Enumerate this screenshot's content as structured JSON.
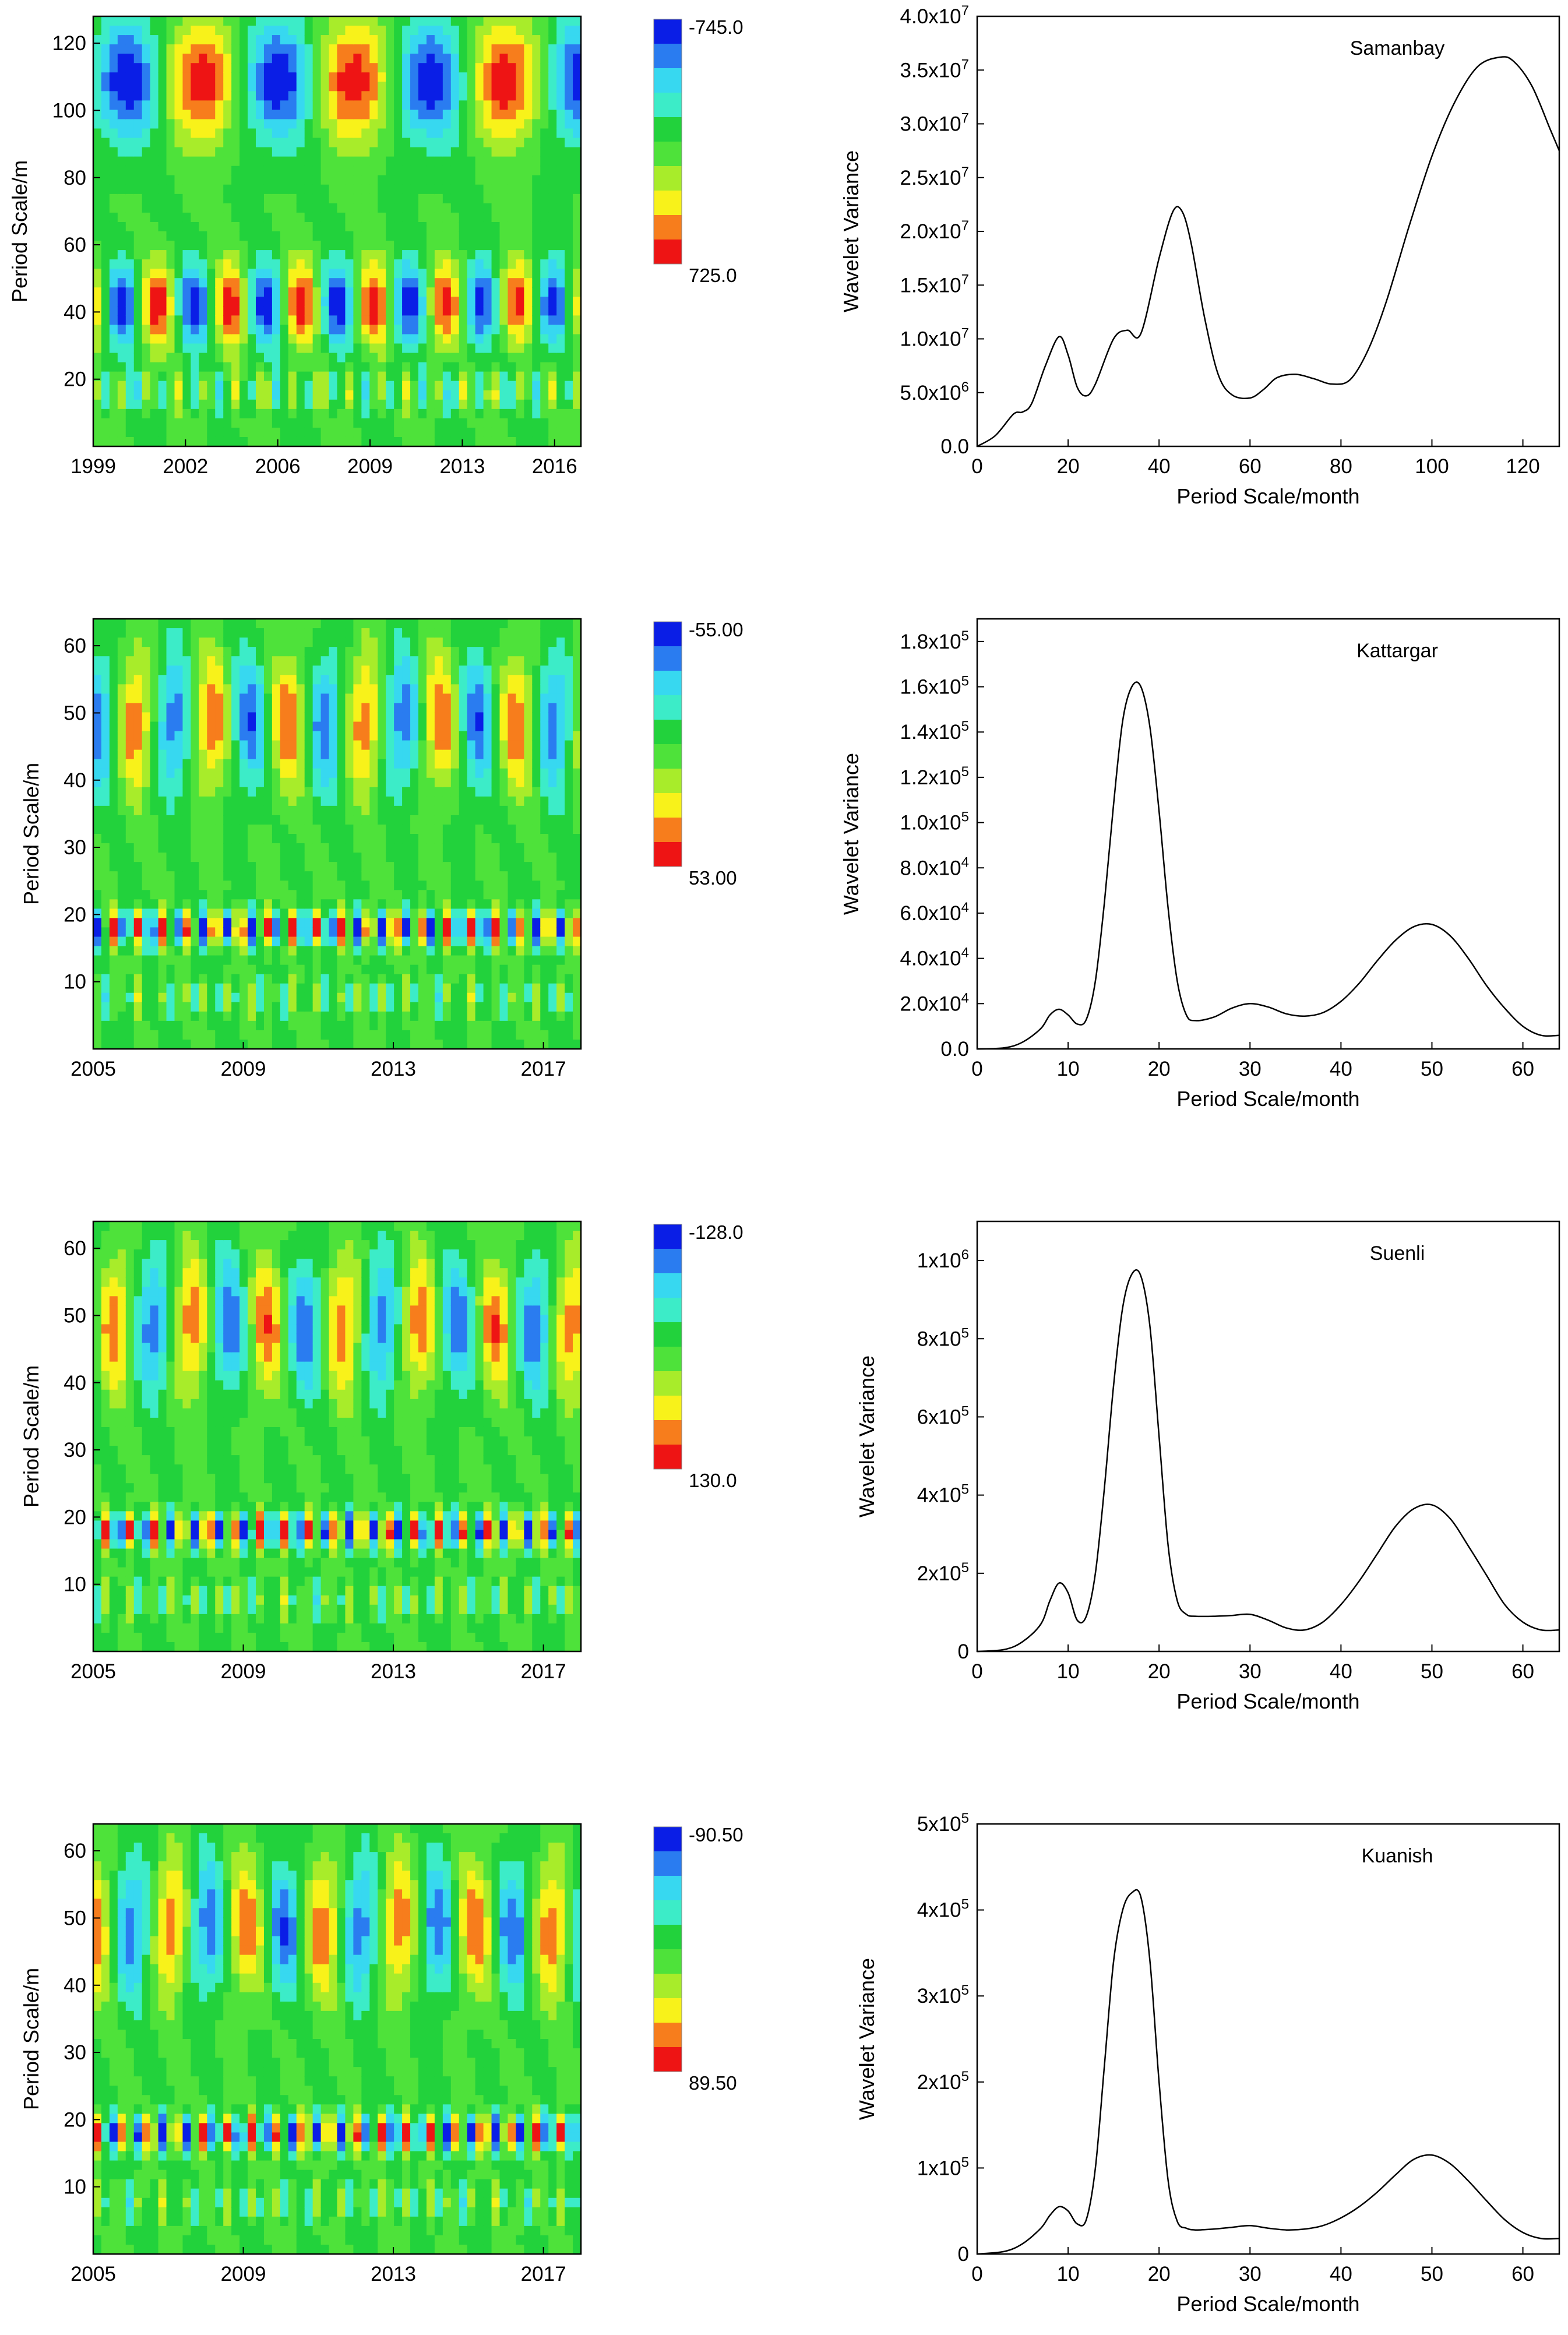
{
  "colors": {
    "scale": [
      "#0a1ee6",
      "#2a7cf0",
      "#37d8f0",
      "#3cecc8",
      "#22d23c",
      "#4ee23a",
      "#a8ec2a",
      "#f8f21a",
      "#f77d1c",
      "#ee1414"
    ],
    "contour_line": "#000000",
    "curve": "#000000"
  },
  "chart_data": [
    {
      "type": "heatmap",
      "site": "Samanbay",
      "ylabel": "Period Scale/m",
      "xlabel": "",
      "x_tick_labels": [
        "1999",
        "2002",
        "2006",
        "2009",
        "2013",
        "2016"
      ],
      "x_tick_years": [
        1999,
        2002.5,
        2006,
        2009.5,
        2013,
        2016.5
      ],
      "xlim": [
        1999,
        2017.5
      ],
      "y_ticks": [
        "20",
        "40",
        "60",
        "80",
        "100",
        "120"
      ],
      "ylim": [
        0,
        128
      ],
      "colorbar_min": "-745.0",
      "colorbar_max": "725.0",
      "spectrum": {
        "type": "line",
        "title": "Samanbay",
        "xlabel": "Period Scale/month",
        "ylabel": "Wavelet Variance",
        "xlim": [
          0,
          128
        ],
        "x_ticks": [
          "0",
          "20",
          "40",
          "60",
          "80",
          "100",
          "120"
        ],
        "ylim": [
          0,
          40000000
        ],
        "y_tick_labels": [
          [
            "0.0",
            ""
          ],
          [
            "5.0x10",
            "6"
          ],
          [
            "1.0x10",
            "7"
          ],
          [
            "1.5x10",
            "7"
          ],
          [
            "2.0x10",
            "7"
          ],
          [
            "2.5x10",
            "7"
          ],
          [
            "3.0x10",
            "7"
          ],
          [
            "3.5x10",
            "7"
          ],
          [
            "4.0x10",
            "7"
          ]
        ],
        "y_tick_values": [
          0,
          5000000,
          10000000,
          15000000,
          20000000,
          25000000,
          30000000,
          35000000,
          40000000
        ],
        "x": [
          0,
          4,
          8,
          10,
          12,
          15,
          18,
          20,
          22,
          24,
          26,
          30,
          33,
          36,
          40,
          43,
          45,
          47,
          50,
          53,
          56,
          60,
          63,
          66,
          70,
          74,
          78,
          82,
          86,
          90,
          95,
          100,
          105,
          110,
          115,
          118,
          122,
          126,
          128
        ],
        "y": [
          0,
          1000000,
          3000000,
          3200000,
          4000000,
          7500000,
          10200000,
          8500000,
          5500000,
          4700000,
          5800000,
          10000000,
          10800000,
          10500000,
          17500000,
          21800000,
          21900000,
          19000000,
          12000000,
          6700000,
          4800000,
          4500000,
          5300000,
          6400000,
          6700000,
          6300000,
          5800000,
          6200000,
          9000000,
          13500000,
          20500000,
          27000000,
          32000000,
          35300000,
          36200000,
          35800000,
          33500000,
          29500000,
          27500000
        ]
      }
    },
    {
      "type": "heatmap",
      "site": "Kattargar",
      "ylabel": "Period Scale/m",
      "xlabel": "",
      "x_tick_labels": [
        "2005",
        "2009",
        "2013",
        "2017"
      ],
      "x_tick_years": [
        2005,
        2009,
        2013,
        2017
      ],
      "xlim": [
        2005,
        2018
      ],
      "y_ticks": [
        "10",
        "20",
        "30",
        "40",
        "50",
        "60"
      ],
      "ylim": [
        0,
        64
      ],
      "colorbar_min": "-55.00",
      "colorbar_max": "53.00",
      "spectrum": {
        "type": "line",
        "title": "Kattargar",
        "xlabel": "Period Scale/month",
        "ylabel": "Wavelet Variance",
        "xlim": [
          0,
          64
        ],
        "x_ticks": [
          "0",
          "10",
          "20",
          "30",
          "40",
          "50",
          "60"
        ],
        "ylim": [
          0,
          190000
        ],
        "y_tick_labels": [
          [
            "0.0",
            ""
          ],
          [
            "2.0x10",
            "4"
          ],
          [
            "4.0x10",
            "4"
          ],
          [
            "6.0x10",
            "4"
          ],
          [
            "8.0x10",
            "4"
          ],
          [
            "1.0x10",
            "5"
          ],
          [
            "1.2x10",
            "5"
          ],
          [
            "1.4x10",
            "5"
          ],
          [
            "1.6x10",
            "5"
          ],
          [
            "1.8x10",
            "5"
          ]
        ],
        "y_tick_values": [
          0,
          20000,
          40000,
          60000,
          80000,
          100000,
          120000,
          140000,
          160000,
          180000
        ],
        "x": [
          0,
          3,
          5,
          7,
          8,
          9,
          10,
          11,
          12,
          13,
          14,
          15,
          16,
          17,
          18,
          19,
          20,
          21,
          22,
          23,
          24,
          26,
          28,
          30,
          32,
          34,
          36,
          38,
          40,
          42,
          44,
          46,
          48,
          50,
          52,
          54,
          56,
          58,
          60,
          62,
          64
        ],
        "y": [
          0,
          500,
          3000,
          9000,
          15000,
          17500,
          15000,
          11000,
          13000,
          30000,
          65000,
          108000,
          145000,
          160000,
          160000,
          142000,
          105000,
          62000,
          30000,
          15000,
          12500,
          14000,
          18000,
          20000,
          18500,
          15500,
          14500,
          16000,
          21000,
          29000,
          39000,
          48000,
          54000,
          55000,
          50000,
          40000,
          28000,
          18000,
          10000,
          6000,
          6000
        ]
      }
    },
    {
      "type": "heatmap",
      "site": "Suenli",
      "ylabel": "Period Scale/m",
      "xlabel": "",
      "x_tick_labels": [
        "2005",
        "2009",
        "2013",
        "2017"
      ],
      "x_tick_years": [
        2005,
        2009,
        2013,
        2017
      ],
      "xlim": [
        2005,
        2018
      ],
      "y_ticks": [
        "10",
        "20",
        "30",
        "40",
        "50",
        "60"
      ],
      "ylim": [
        0,
        64
      ],
      "colorbar_min": "-128.0",
      "colorbar_max": "130.0",
      "spectrum": {
        "type": "line",
        "title": "Suenli",
        "xlabel": "Period Scale/month",
        "ylabel": "Wavelet Variance",
        "xlim": [
          0,
          64
        ],
        "x_ticks": [
          "0",
          "10",
          "20",
          "30",
          "40",
          "50",
          "60"
        ],
        "ylim": [
          0,
          1100000
        ],
        "y_tick_labels": [
          [
            "0",
            ""
          ],
          [
            "2x10",
            "5"
          ],
          [
            "4x10",
            "5"
          ],
          [
            "6x10",
            "5"
          ],
          [
            "8x10",
            "5"
          ],
          [
            "1x10",
            "6"
          ]
        ],
        "y_tick_values": [
          0,
          200000,
          400000,
          600000,
          800000,
          1000000
        ],
        "x": [
          0,
          3,
          5,
          7,
          8,
          9,
          10,
          11,
          12,
          13,
          14,
          15,
          16,
          17,
          18,
          19,
          20,
          21,
          22,
          23,
          24,
          26,
          28,
          30,
          32,
          34,
          36,
          38,
          40,
          42,
          44,
          46,
          48,
          50,
          52,
          54,
          56,
          58,
          60,
          62,
          64
        ],
        "y": [
          0,
          5000,
          25000,
          70000,
          130000,
          175000,
          150000,
          80000,
          90000,
          200000,
          420000,
          680000,
          880000,
          965000,
          960000,
          830000,
          550000,
          270000,
          130000,
          95000,
          90000,
          90000,
          92000,
          95000,
          80000,
          60000,
          55000,
          75000,
          120000,
          180000,
          250000,
          320000,
          365000,
          375000,
          340000,
          270000,
          195000,
          120000,
          75000,
          55000,
          55000
        ]
      }
    },
    {
      "type": "heatmap",
      "site": "Kuanish",
      "ylabel": "Period Scale/m",
      "xlabel": "",
      "x_tick_labels": [
        "2005",
        "2009",
        "2013",
        "2017"
      ],
      "x_tick_years": [
        2005,
        2009,
        2013,
        2017
      ],
      "xlim": [
        2005,
        2018
      ],
      "y_ticks": [
        "10",
        "20",
        "30",
        "40",
        "50",
        "60"
      ],
      "ylim": [
        0,
        64
      ],
      "colorbar_min": "-90.50",
      "colorbar_max": "89.50",
      "spectrum": {
        "type": "line",
        "title": "Kuanish",
        "xlabel": "Period Scale/month",
        "ylabel": "Wavelet Variance",
        "xlim": [
          0,
          64
        ],
        "x_ticks": [
          "0",
          "10",
          "20",
          "30",
          "40",
          "50",
          "60"
        ],
        "ylim": [
          0,
          500000
        ],
        "y_tick_labels": [
          [
            "0",
            ""
          ],
          [
            "1x10",
            "5"
          ],
          [
            "2x10",
            "5"
          ],
          [
            "3x10",
            "5"
          ],
          [
            "4x10",
            "5"
          ],
          [
            "5x10",
            "5"
          ]
        ],
        "y_tick_values": [
          0,
          100000,
          200000,
          300000,
          400000,
          500000
        ],
        "x": [
          0,
          3,
          5,
          7,
          8,
          9,
          10,
          11,
          12,
          13,
          14,
          15,
          16,
          17,
          18,
          19,
          20,
          21,
          22,
          23,
          24,
          26,
          28,
          30,
          32,
          34,
          36,
          38,
          40,
          42,
          44,
          46,
          48,
          50,
          52,
          54,
          56,
          58,
          60,
          62,
          64
        ],
        "y": [
          0,
          3000,
          12000,
          30000,
          45000,
          55000,
          50000,
          35000,
          40000,
          100000,
          220000,
          340000,
          400000,
          420000,
          415000,
          340000,
          200000,
          85000,
          38000,
          30000,
          28000,
          29000,
          31000,
          33000,
          30000,
          28000,
          29000,
          33000,
          42000,
          55000,
          72000,
          92000,
          110000,
          115000,
          105000,
          85000,
          62000,
          40000,
          25000,
          18000,
          18000
        ]
      }
    }
  ]
}
